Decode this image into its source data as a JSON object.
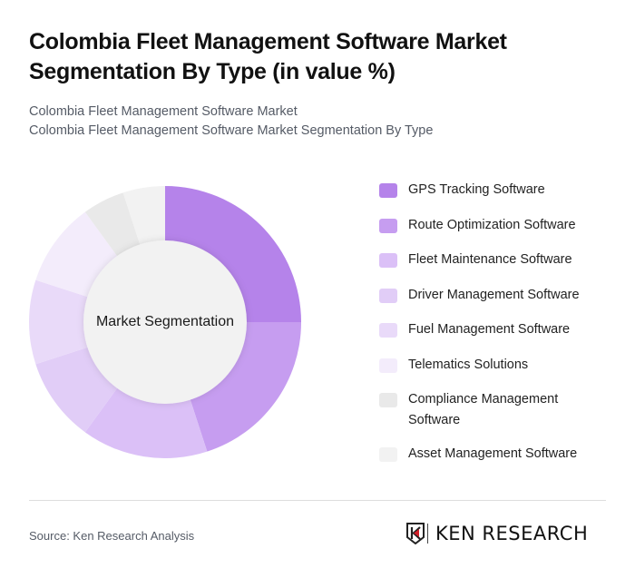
{
  "header": {
    "title": "Colombia Fleet Management Software Market Segmentation By Type (in value %)",
    "subtitle_lines": [
      "Colombia Fleet Management Software Market",
      "Colombia Fleet Management Software Market Segmentation By Type"
    ]
  },
  "chart": {
    "center_label": "Market Segmentation"
  },
  "legend": {
    "items": [
      {
        "label": "GPS Tracking Software",
        "color": "#b583ea"
      },
      {
        "label": "Route Optimization Software",
        "color": "#c69df0"
      },
      {
        "label": "Fleet Maintenance Software",
        "color": "#dbc0f7"
      },
      {
        "label": "Driver Management Software",
        "color": "#e1cdf7"
      },
      {
        "label": "Fuel Management Software",
        "color": "#e9daf9"
      },
      {
        "label": "Telematics Solutions",
        "color": "#f3ecfb"
      },
      {
        "label": "Compliance Management Software",
        "color": "#e9e9e9"
      },
      {
        "label": "Asset Management Software",
        "color": "#f2f2f2"
      }
    ]
  },
  "footer": {
    "source": "Source: Ken Research Analysis",
    "logo_text": "KEN RESEARCH"
  },
  "chart_data": {
    "type": "pie",
    "subtype": "donut",
    "title": "Colombia Fleet Management Software Market Segmentation By Type (in value %)",
    "center_label": "Market Segmentation",
    "categories": [
      "GPS Tracking Software",
      "Route Optimization Software",
      "Fleet Maintenance Software",
      "Driver Management Software",
      "Fuel Management Software",
      "Telematics Solutions",
      "Compliance Management Software",
      "Asset Management Software"
    ],
    "values": [
      25,
      20,
      15,
      10,
      10,
      10,
      5,
      5
    ],
    "colors": [
      "#b583ea",
      "#c69df0",
      "#dbc0f7",
      "#e1cdf7",
      "#e9daf9",
      "#f3ecfb",
      "#e9e9e9",
      "#f2f2f2"
    ],
    "unit": "%",
    "start_angle": "top, clockwise",
    "legend_position": "right"
  }
}
